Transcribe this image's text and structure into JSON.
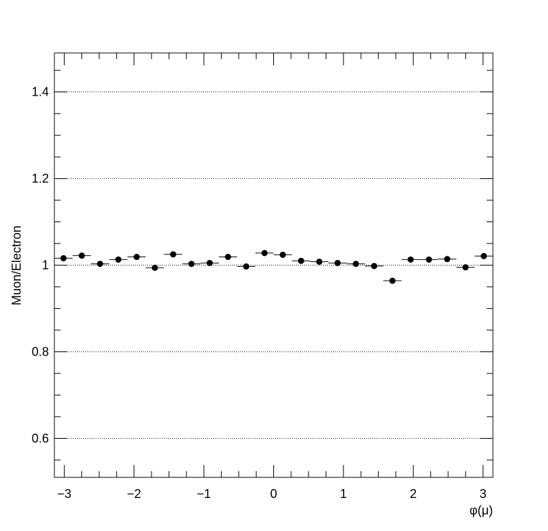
{
  "chart_data": {
    "type": "scatter",
    "x_label": "φ(μ)",
    "y_label": "Muon/Electron",
    "x": [
      -3.011,
      -2.749,
      -2.487,
      -2.225,
      -1.963,
      -1.702,
      -1.44,
      -1.178,
      -0.916,
      -0.654,
      -0.393,
      -0.131,
      0.131,
      0.393,
      0.654,
      0.916,
      1.178,
      1.44,
      1.702,
      1.963,
      2.225,
      2.487,
      2.749,
      3.011
    ],
    "values": [
      1.016,
      1.022,
      1.003,
      1.013,
      1.019,
      0.994,
      1.025,
      1.003,
      1.005,
      1.019,
      0.997,
      1.028,
      1.024,
      1.01,
      1.008,
      1.005,
      1.003,
      0.998,
      0.964,
      1.013,
      1.013,
      1.014,
      0.995,
      1.021
    ],
    "xerr": 0.1309,
    "color": "#000000",
    "xlim": [
      -3.1416,
      3.1416
    ],
    "ylim": [
      0.51,
      1.49
    ],
    "xticks": [
      {
        "value": -3,
        "label": "−3"
      },
      {
        "value": -2,
        "label": "−2"
      },
      {
        "value": -1,
        "label": "−1"
      },
      0,
      1,
      2,
      3
    ],
    "yticks": [
      0.6,
      0.8,
      1,
      1.2,
      1.4
    ],
    "xminorticks": [
      -2.75,
      -2.5,
      -2.25,
      -1.75,
      -1.5,
      -1.25,
      -0.75,
      -0.5,
      -0.25,
      0.25,
      0.5,
      0.75,
      1.25,
      1.5,
      1.75,
      2.25,
      2.5,
      2.75
    ],
    "yminorticks": [
      0.55,
      0.65,
      0.7,
      0.75,
      0.85,
      0.9,
      0.95,
      1.05,
      1.1,
      1.15,
      1.25,
      1.3,
      1.35,
      1.45
    ],
    "grid": "y"
  }
}
